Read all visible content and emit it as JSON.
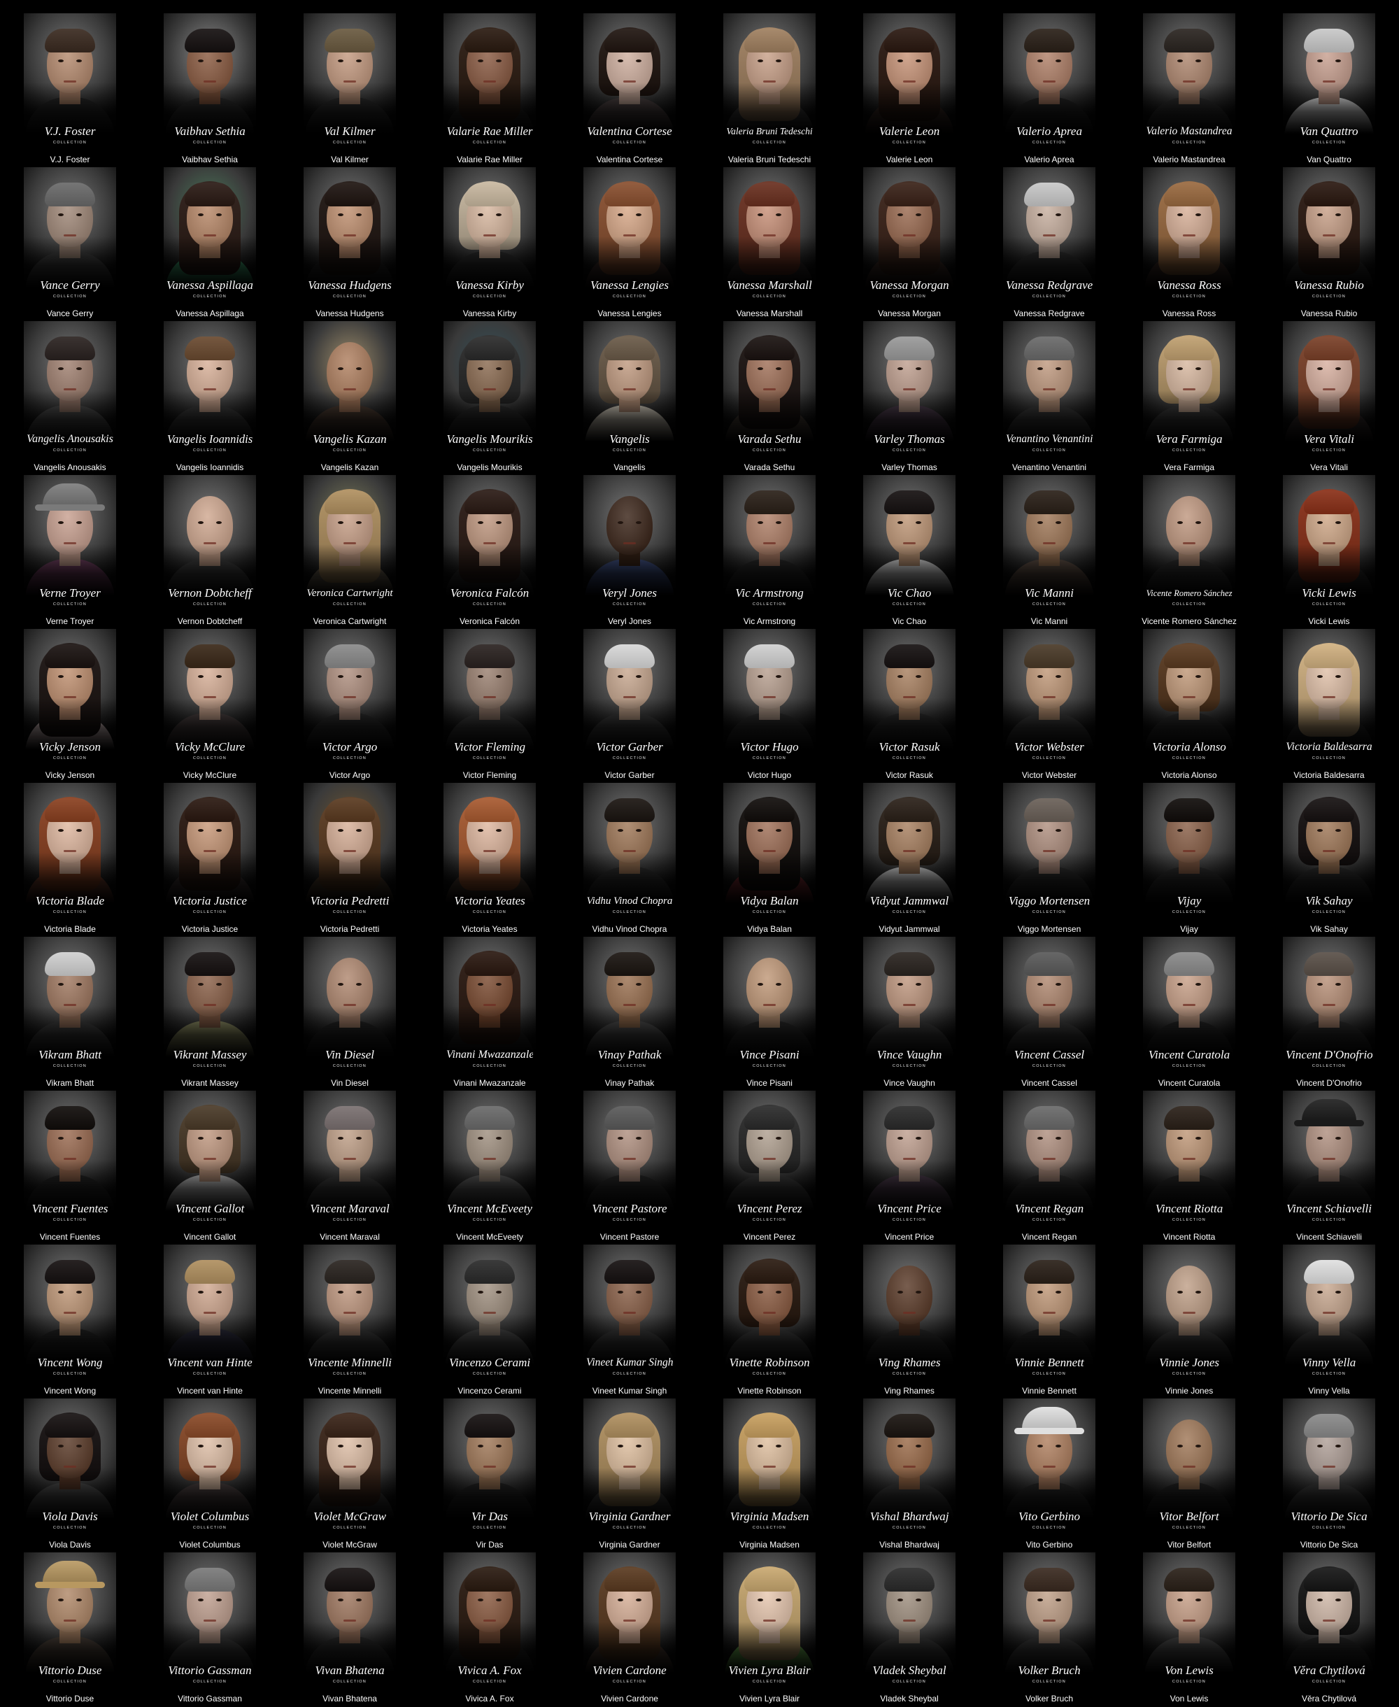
{
  "page": {
    "background": "#000000",
    "card_spotlight": "#787878",
    "text_color": "#ffffff"
  },
  "collection_label": "COLLECTION",
  "people": [
    {
      "name": "V.J. Foster",
      "skin": "#b58a6e",
      "hair": "#3a2a20",
      "cloth": "#141414"
    },
    {
      "name": "Vaibhav Sethia",
      "skin": "#8a5a40",
      "hair": "#151010",
      "cloth": "#1a1a1a",
      "backdrop": "#8c8c8c"
    },
    {
      "name": "Val Kilmer",
      "skin": "#c49a80",
      "hair": "#6a5a40",
      "cloth": "#1a1a1a"
    },
    {
      "name": "Valarie Rae Miller",
      "skin": "#8a5a42",
      "hair": "#2a1a10",
      "cloth": "#111111"
    },
    {
      "name": "Valentina Cortese",
      "skin": "#d0b0a0",
      "hair": "#201510",
      "cloth": "#3a3030"
    },
    {
      "name": "Valeria Bruni Tedeschi",
      "skin": "#c8a088",
      "hair": "#a08060",
      "cloth": "#2a2a2a"
    },
    {
      "name": "Valerie Leon",
      "skin": "#c89478",
      "hair": "#2a1810",
      "cloth": "#2a1a14"
    },
    {
      "name": "Valerio Aprea",
      "skin": "#b08068",
      "hair": "#2a2018",
      "cloth": "#111111"
    },
    {
      "name": "Valerio Mastandrea",
      "skin": "#b08870",
      "hair": "#2a2420",
      "cloth": "#1c1c1c"
    },
    {
      "name": "Van Quattro",
      "skin": "#c8a090",
      "hair": "#c8c8c8",
      "cloth": "#d8d8d8"
    },
    {
      "name": "Vance Gerry",
      "skin": "#a08878",
      "hair": "#6a6a6a",
      "cloth": "#2a2a2a"
    },
    {
      "name": "Vanessa Aspillaga",
      "skin": "#b88868",
      "hair": "#2a1a14",
      "cloth": "#2a8a5a",
      "backdrop": "#4a7a5a"
    },
    {
      "name": "Vanessa Hudgens",
      "skin": "#c09070",
      "hair": "#1e1410",
      "cloth": "#111111"
    },
    {
      "name": "Vanessa Kirby",
      "skin": "#d8b8a0",
      "hair": "#c8b8a0",
      "cloth": "#181818"
    },
    {
      "name": "Vanessa Lengies",
      "skin": "#d8a888",
      "hair": "#8a5030",
      "cloth": "#2a1a18"
    },
    {
      "name": "Vanessa Marshall",
      "skin": "#c89078",
      "hair": "#6a3020",
      "cloth": "#1a1414"
    },
    {
      "name": "Vanessa Morgan",
      "skin": "#9a6a50",
      "hair": "#3a2218",
      "cloth": "#2a1a14"
    },
    {
      "name": "Vanessa Redgrave",
      "skin": "#c8b0a0",
      "hair": "#c8c8c8",
      "cloth": "#1a1a1a"
    },
    {
      "name": "Vanessa Ross",
      "skin": "#d8b098",
      "hair": "#9a6a40",
      "cloth": "#2a1a14"
    },
    {
      "name": "Vanessa Rubio",
      "skin": "#c8a088",
      "hair": "#2a1810",
      "cloth": "#1a1a1a"
    },
    {
      "name": "Vangelis Anousakis",
      "skin": "#a08070",
      "hair": "#2a2220",
      "cloth": "#3a3a3a"
    },
    {
      "name": "Vangelis Ioannidis",
      "skin": "#d8b098",
      "hair": "#6a4a30",
      "cloth": "#2a2a2a"
    },
    {
      "name": "Vangelis Kazan",
      "skin": "#b08060",
      "hair": "#5a5048",
      "cloth": "#3a2a20",
      "backdrop": "#9a8a6a"
    },
    {
      "name": "Vangelis Mourikis",
      "skin": "#8a6a50",
      "hair": "#2a2a2a",
      "cloth": "#1a1a1a",
      "backdrop": "#34505a"
    },
    {
      "name": "Vangelis",
      "skin": "#c09a80",
      "hair": "#6a5a48",
      "cloth": "#c8c0b0"
    },
    {
      "name": "Varada Sethu",
      "skin": "#a07058",
      "hair": "#1a1210",
      "cloth": "#3a3028"
    },
    {
      "name": "Varley Thomas",
      "skin": "#c0a090",
      "hair": "#9a9a9a",
      "cloth": "#3a2a3a"
    },
    {
      "name": "Venantino Venantini",
      "skin": "#c09a80",
      "hair": "#6a6a6a",
      "cloth": "#2a2a2a"
    },
    {
      "name": "Vera Farmiga",
      "skin": "#d8b8a0",
      "hair": "#c0a070",
      "cloth": "#2a2a2a"
    },
    {
      "name": "Vera Vitali",
      "skin": "#d8b0a0",
      "hair": "#7a4028",
      "cloth": "#2a2020"
    },
    {
      "name": "Verne Troyer",
      "skin": "#c8a090",
      "hair": "#7a7a7a",
      "cloth": "#5a2a4a"
    },
    {
      "name": "Vernon Dobtcheff",
      "skin": "#d0a890",
      "hair": "#d0d0d0",
      "cloth": "#2a2a2a"
    },
    {
      "name": "Veronica Cartwright",
      "skin": "#c8a088",
      "hair": "#b09060",
      "cloth": "#5a5040",
      "backdrop": "#7a7a5a"
    },
    {
      "name": "Veronica Falcón",
      "skin": "#c09880",
      "hair": "#2a1a14",
      "cloth": "#1a1a1a"
    },
    {
      "name": "Veryl Jones",
      "skin": "#3a2418",
      "hair": "#1a1010",
      "cloth": "#2a3a6a"
    },
    {
      "name": "Vic Armstrong",
      "skin": "#b08068",
      "hair": "#2a2018",
      "cloth": "#151515"
    },
    {
      "name": "Vic Chao",
      "skin": "#c09878",
      "hair": "#151010",
      "cloth": "#c8c8c8"
    },
    {
      "name": "Vic Manni",
      "skin": "#a07858",
      "hair": "#2a2018",
      "cloth": "#4a3a30"
    },
    {
      "name": "Vicente Romero Sánchez",
      "skin": "#c09880",
      "hair": "#a08070",
      "cloth": "#1a1a1a"
    },
    {
      "name": "Vicki Lewis",
      "skin": "#d0a888",
      "hair": "#8a3018",
      "cloth": "#1a1a1a"
    },
    {
      "name": "Vicky Jenson",
      "skin": "#c09070",
      "hair": "#1a1210",
      "cloth": "#d8c0c0"
    },
    {
      "name": "Vicky McClure",
      "skin": "#d8b098",
      "hair": "#3a2818",
      "cloth": "#3a3030"
    },
    {
      "name": "Victor Argo",
      "skin": "#b09080",
      "hair": "#8a8a8a",
      "cloth": "#1a1a1a"
    },
    {
      "name": "Victor Fleming",
      "skin": "#9a8070",
      "hair": "#2a2220",
      "cloth": "#2a2a2a"
    },
    {
      "name": "Victor Garber",
      "skin": "#c8a890",
      "hair": "#d8d8d8",
      "cloth": "#2a2a2a"
    },
    {
      "name": "Victor Hugo",
      "skin": "#b8a090",
      "hair": "#d0d0d0",
      "cloth": "#1a1a1a"
    },
    {
      "name": "Victor Rasuk",
      "skin": "#a88060",
      "hair": "#151010",
      "cloth": "#1a1a1a"
    },
    {
      "name": "Victor Webster",
      "skin": "#c09878",
      "hair": "#4a3a28",
      "cloth": "#2a2a2a"
    },
    {
      "name": "Victoria Alonso",
      "skin": "#c09878",
      "hair": "#5a3a20",
      "cloth": "#1a1a1a"
    },
    {
      "name": "Victoria Baldesarra",
      "skin": "#e0c0a8",
      "hair": "#d0b080",
      "cloth": "#151515"
    },
    {
      "name": "Victoria Blade",
      "skin": "#e0b8a0",
      "hair": "#8a4020",
      "cloth": "#5a2a1a"
    },
    {
      "name": "Victoria Justice",
      "skin": "#c89878",
      "hair": "#2a1810",
      "cloth": "#2a2020"
    },
    {
      "name": "Victoria Pedretti",
      "skin": "#d8b098",
      "hair": "#5a3a20",
      "cloth": "#3a2a1a",
      "backdrop": "#6a5434"
    },
    {
      "name": "Victoria Yeates",
      "skin": "#e0b8a0",
      "hair": "#a85a30",
      "cloth": "#3a2a20"
    },
    {
      "name": "Vidhu Vinod Chopra",
      "skin": "#a07858",
      "hair": "#1a1410",
      "cloth": "#1a1a1a"
    },
    {
      "name": "Vidya Balan",
      "skin": "#a07058",
      "hair": "#100c0a",
      "cloth": "#6a1a20"
    },
    {
      "name": "Vidyut Jammwal",
      "skin": "#a88060",
      "hair": "#2a2018",
      "cloth": "#c8c8c8"
    },
    {
      "name": "Viggo Mortensen",
      "skin": "#b09080",
      "hair": "#6a6058",
      "cloth": "#1a1a1a"
    },
    {
      "name": "Vijay",
      "skin": "#8a6048",
      "hair": "#100c0a",
      "cloth": "#1a1a1a"
    },
    {
      "name": "Vik Sahay",
      "skin": "#a07858",
      "hair": "#151010",
      "cloth": "#1a1a1a"
    },
    {
      "name": "Vikram Bhatt",
      "skin": "#a07860",
      "hair": "#d0d0d0",
      "cloth": "#2a2a2a"
    },
    {
      "name": "Vikrant Massey",
      "skin": "#8a6048",
      "hair": "#151010",
      "cloth": "#7a7a50"
    },
    {
      "name": "Vin Diesel",
      "skin": "#b08870",
      "hair": "#b08870",
      "cloth": "#111111"
    },
    {
      "name": "Vinani Mwazanzale",
      "skin": "#7a4a30",
      "hair": "#2a1810",
      "cloth": "#111111"
    },
    {
      "name": "Vinay Pathak",
      "skin": "#9a7050",
      "hair": "#1a1410",
      "cloth": "#3a3a3a"
    },
    {
      "name": "Vince Pisani",
      "skin": "#c09878",
      "hair": "#c09878",
      "cloth": "#151515"
    },
    {
      "name": "Vince Vaughn",
      "skin": "#c09880",
      "hair": "#2a2420",
      "cloth": "#2a2a2a"
    },
    {
      "name": "Vincent Cassel",
      "skin": "#b08870",
      "hair": "#5a5a5a",
      "cloth": "#2a2a2a"
    },
    {
      "name": "Vincent Curatola",
      "skin": "#c8a088",
      "hair": "#8a8a8a",
      "cloth": "#111111"
    },
    {
      "name": "Vincent D'Onofrio",
      "skin": "#b89078",
      "hair": "#5a5048",
      "cloth": "#1a1a1a"
    },
    {
      "name": "Vincent Fuentes",
      "skin": "#9a6a50",
      "hair": "#100c0a",
      "cloth": "#111111"
    },
    {
      "name": "Vincent Gallot",
      "skin": "#c09880",
      "hair": "#4a3a28",
      "cloth": "#b0b0b0"
    },
    {
      "name": "Vincent Maraval",
      "skin": "#c0a088",
      "hair": "#7a7070",
      "cloth": "#2a2a2a"
    },
    {
      "name": "Vincent McEveety",
      "skin": "#a09080",
      "hair": "#6a6a6a",
      "cloth": "#4a4a4a"
    },
    {
      "name": "Vincent Pastore",
      "skin": "#b09080",
      "hair": "#5a5a5a",
      "cloth": "#151515"
    },
    {
      "name": "Vincent Perez",
      "skin": "#b0a090",
      "hair": "#2a2a2a",
      "cloth": "#2a2a2a"
    },
    {
      "name": "Vincent Price",
      "skin": "#c0a090",
      "hair": "#2a2a2a",
      "cloth": "#3a2a3a"
    },
    {
      "name": "Vincent Regan",
      "skin": "#b09080",
      "hair": "#6a6a6a",
      "cloth": "#1a1a1a"
    },
    {
      "name": "Vincent Riotta",
      "skin": "#c09878",
      "hair": "#2a2018",
      "cloth": "#151515"
    },
    {
      "name": "Vincent Schiavelli",
      "skin": "#b09080",
      "hair": "#1a1a1a",
      "cloth": "#1a1a1a"
    },
    {
      "name": "Vincent Wong",
      "skin": "#c09878",
      "hair": "#151010",
      "cloth": "#111111"
    },
    {
      "name": "Vincent van Hinte",
      "skin": "#d0a890",
      "hair": "#b09060",
      "cloth": "#1a1a2a"
    },
    {
      "name": "Vincente Minnelli",
      "skin": "#c09880",
      "hair": "#2a2420",
      "cloth": "#2a2a2a"
    },
    {
      "name": "Vincenzo Cerami",
      "skin": "#a09080",
      "hair": "#2a2a2a",
      "cloth": "#3a3a3a"
    },
    {
      "name": "Vineet Kumar Singh",
      "skin": "#8a6048",
      "hair": "#151010",
      "cloth": "#2a2a2a"
    },
    {
      "name": "Vinette Robinson",
      "skin": "#8a5a40",
      "hair": "#2a1a10",
      "cloth": "#2a2a2a"
    },
    {
      "name": "Ving Rhames",
      "skin": "#5a3a28",
      "hair": "#5a3a28",
      "cloth": "#1a1a1a"
    },
    {
      "name": "Vinnie Bennett",
      "skin": "#c09878",
      "hair": "#2a2018",
      "cloth": "#111111"
    },
    {
      "name": "Vinnie Jones",
      "skin": "#c0a088",
      "hair": "#7a7068",
      "cloth": "#2a2a2a"
    },
    {
      "name": "Vinny Vella",
      "skin": "#c8a890",
      "hair": "#e0e0e0",
      "cloth": "#2a2a2a"
    },
    {
      "name": "Viola Davis",
      "skin": "#5a3a28",
      "hair": "#151010",
      "cloth": "#3a3a3a"
    },
    {
      "name": "Violet Columbus",
      "skin": "#e0c0a8",
      "hair": "#8a4a28",
      "cloth": "#3a3030"
    },
    {
      "name": "Violet McGraw",
      "skin": "#e0c0a8",
      "hair": "#3a2418",
      "cloth": "#2a2a2a"
    },
    {
      "name": "Vir Das",
      "skin": "#a07858",
      "hair": "#151010",
      "cloth": "#111111"
    },
    {
      "name": "Virginia Gardner",
      "skin": "#e0c0a0",
      "hair": "#b09060",
      "cloth": "#2a2a2a"
    },
    {
      "name": "Virginia Madsen",
      "skin": "#e0c0a0",
      "hair": "#c8a060",
      "cloth": "#2a2a2a"
    },
    {
      "name": "Vishal Bhardwaj",
      "skin": "#9a6a48",
      "hair": "#1a1410",
      "cloth": "#2a2a2a"
    },
    {
      "name": "Vito Gerbino",
      "skin": "#b08060",
      "hair": "#e0e0e0",
      "cloth": "#151515"
    },
    {
      "name": "Vitor Belfort",
      "skin": "#a07858",
      "hair": "#1a1410",
      "cloth": "#111111"
    },
    {
      "name": "Vittorio De Sica",
      "skin": "#b0a098",
      "hair": "#8a8a8a",
      "cloth": "#2a2a2a"
    },
    {
      "name": "Vittorio Duse",
      "skin": "#b08868",
      "hair": "#b89860",
      "cloth": "#3a3028"
    },
    {
      "name": "Vittorio Gassman",
      "skin": "#c0a090",
      "hair": "#7a7a7a",
      "cloth": "#2a2a2a"
    },
    {
      "name": "Vivan Bhatena",
      "skin": "#a07860",
      "hair": "#151010",
      "cloth": "#1a1a1a"
    },
    {
      "name": "Vivica A. Fox",
      "skin": "#8a5a40",
      "hair": "#2a1a10",
      "cloth": "#111111"
    },
    {
      "name": "Vivien Cardone",
      "skin": "#d8b098",
      "hair": "#5a3a20",
      "cloth": "#3a2a20"
    },
    {
      "name": "Vivien Lyra Blair",
      "skin": "#e8c8b0",
      "hair": "#c8a870",
      "cloth": "#5aa040"
    },
    {
      "name": "Vladek Sheybal",
      "skin": "#a09080",
      "hair": "#2a2a2a",
      "cloth": "#2a2a2a"
    },
    {
      "name": "Volker Bruch",
      "skin": "#c0a088",
      "hair": "#3a2a20",
      "cloth": "#2a2a2a"
    },
    {
      "name": "Von Lewis",
      "skin": "#c8a088",
      "hair": "#2a2018",
      "cloth": "#3a3a3a"
    },
    {
      "name": "Věra Chytilová",
      "skin": "#d0b8a8",
      "hair": "#151515",
      "cloth": "#151515"
    }
  ]
}
